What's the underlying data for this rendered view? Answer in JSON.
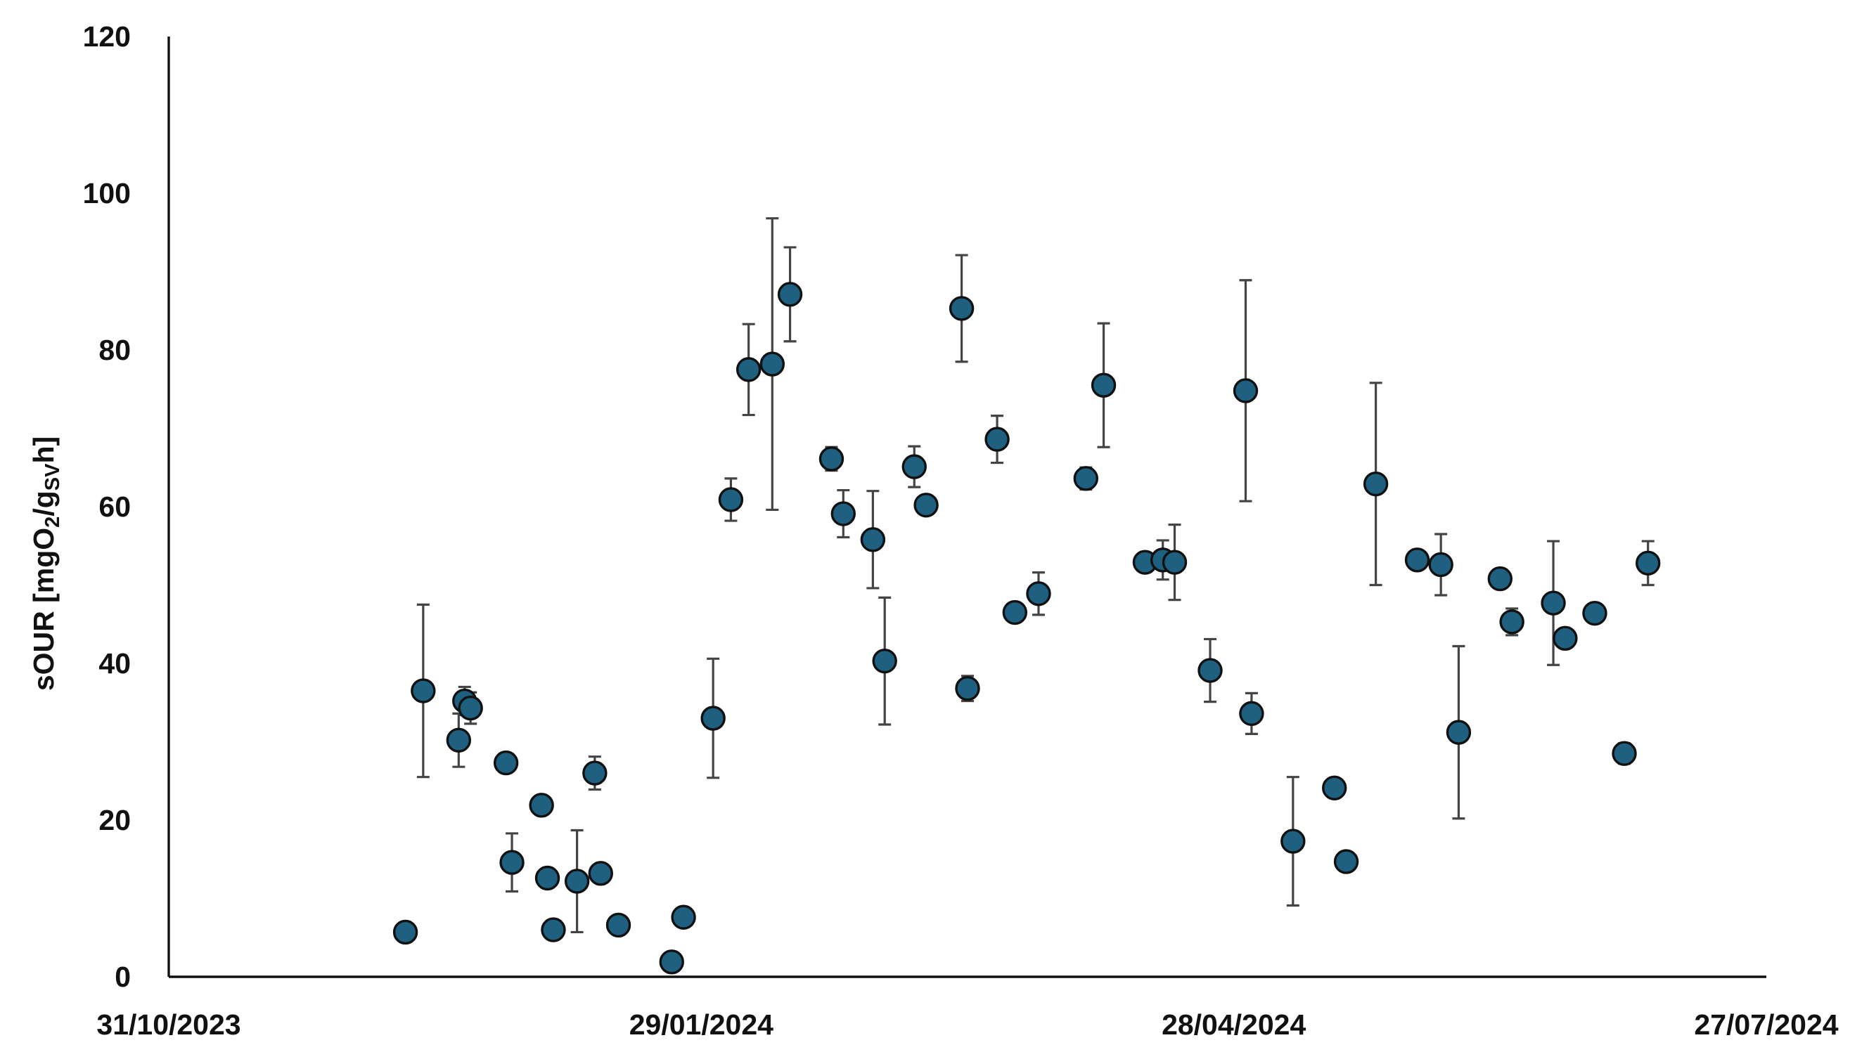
{
  "chart_data": {
    "type": "scatter",
    "ylabel": "sOUR [mgO2/gSVh]",
    "ylabel_parts": {
      "prefix": "sOUR [mgO",
      "sub1": "2",
      "mid": "/g",
      "sub2": "SV",
      "suffix": "h]"
    },
    "xlabel": "",
    "xlim": [
      "2023-10-31",
      "2024-07-27"
    ],
    "ylim": [
      0,
      120
    ],
    "x_ticks": [
      {
        "date": "2023-10-31",
        "label": "31/10/2023"
      },
      {
        "date": "2024-01-29",
        "label": "29/01/2024"
      },
      {
        "date": "2024-04-28",
        "label": "28/04/2024"
      },
      {
        "date": "2024-07-27",
        "label": "27/07/2024"
      }
    ],
    "y_ticks": [
      0,
      20,
      40,
      60,
      80,
      100,
      120
    ],
    "grid": false,
    "legend": "none",
    "marker_color": "#1f5f80",
    "marker_edge": "#111111",
    "errorbar_color": "#444444",
    "points": [
      {
        "x": "2023-12-10",
        "y": 5.7
      },
      {
        "x": "2023-12-13",
        "y": 36.5,
        "err": 11.0
      },
      {
        "x": "2023-12-19",
        "y": 30.2,
        "err": 3.4
      },
      {
        "x": "2023-12-20",
        "y": 35.2,
        "err": 1.8
      },
      {
        "x": "2023-12-21",
        "y": 34.3,
        "err": 2.0
      },
      {
        "x": "2023-12-27",
        "y": 27.3
      },
      {
        "x": "2023-12-28",
        "y": 14.6,
        "err": 3.7
      },
      {
        "x": "2024-01-02",
        "y": 21.9
      },
      {
        "x": "2024-01-03",
        "y": 12.6
      },
      {
        "x": "2024-01-04",
        "y": 6.0
      },
      {
        "x": "2024-01-08",
        "y": 12.2,
        "err": 6.5
      },
      {
        "x": "2024-01-11",
        "y": 26.0,
        "err": 2.1
      },
      {
        "x": "2024-01-12",
        "y": 13.2
      },
      {
        "x": "2024-01-15",
        "y": 6.6
      },
      {
        "x": "2024-01-24",
        "y": 1.9
      },
      {
        "x": "2024-01-26",
        "y": 7.6
      },
      {
        "x": "2024-01-31",
        "y": 33.0,
        "err": 7.6
      },
      {
        "x": "2024-02-03",
        "y": 60.9,
        "err": 2.7
      },
      {
        "x": "2024-02-06",
        "y": 77.5,
        "err": 5.8
      },
      {
        "x": "2024-02-10",
        "y": 78.2,
        "err": 18.6
      },
      {
        "x": "2024-02-13",
        "y": 87.1,
        "err": 6.0
      },
      {
        "x": "2024-02-20",
        "y": 66.1,
        "err": 1.5
      },
      {
        "x": "2024-02-22",
        "y": 59.1,
        "err": 3.0
      },
      {
        "x": "2024-02-27",
        "y": 55.8,
        "err": 6.2
      },
      {
        "x": "2024-02-29",
        "y": 40.3,
        "err": 8.1
      },
      {
        "x": "2024-03-05",
        "y": 65.1,
        "err": 2.6
      },
      {
        "x": "2024-03-07",
        "y": 60.2
      },
      {
        "x": "2024-03-13",
        "y": 85.3,
        "err": 6.8
      },
      {
        "x": "2024-03-14",
        "y": 36.8,
        "err": 1.6
      },
      {
        "x": "2024-03-19",
        "y": 68.6,
        "err": 3.0
      },
      {
        "x": "2024-03-22",
        "y": 46.5
      },
      {
        "x": "2024-03-26",
        "y": 48.9,
        "err": 2.7
      },
      {
        "x": "2024-04-03",
        "y": 63.6,
        "err": 1.4
      },
      {
        "x": "2024-04-06",
        "y": 75.5,
        "err": 7.9
      },
      {
        "x": "2024-04-13",
        "y": 52.9
      },
      {
        "x": "2024-04-16",
        "y": 53.2,
        "err": 2.5
      },
      {
        "x": "2024-04-18",
        "y": 52.9,
        "err": 4.8
      },
      {
        "x": "2024-04-24",
        "y": 39.1,
        "err": 4.0
      },
      {
        "x": "2024-04-30",
        "y": 74.8,
        "err": 14.1
      },
      {
        "x": "2024-05-01",
        "y": 33.6,
        "err": 2.6
      },
      {
        "x": "2024-05-08",
        "y": 17.3,
        "err": 8.2
      },
      {
        "x": "2024-05-15",
        "y": 24.1
      },
      {
        "x": "2024-05-17",
        "y": 14.7
      },
      {
        "x": "2024-05-22",
        "y": 62.9,
        "err": 12.9
      },
      {
        "x": "2024-05-29",
        "y": 53.2
      },
      {
        "x": "2024-06-02",
        "y": 52.6,
        "err": 3.9
      },
      {
        "x": "2024-06-05",
        "y": 31.2,
        "err": 11.0
      },
      {
        "x": "2024-06-12",
        "y": 50.8
      },
      {
        "x": "2024-06-14",
        "y": 45.3,
        "err": 1.7
      },
      {
        "x": "2024-06-21",
        "y": 47.7,
        "err": 7.9
      },
      {
        "x": "2024-06-23",
        "y": 43.2
      },
      {
        "x": "2024-06-28",
        "y": 46.4
      },
      {
        "x": "2024-07-03",
        "y": 28.5,
        "err": 1.3
      },
      {
        "x": "2024-07-07",
        "y": 52.8,
        "err": 2.8
      }
    ]
  }
}
